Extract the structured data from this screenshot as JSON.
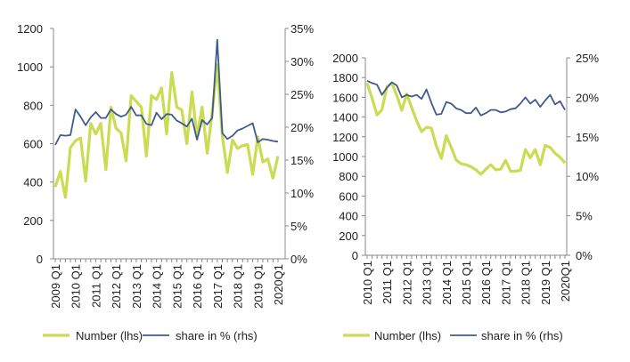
{
  "colors": {
    "number": "#c9dc52",
    "share": "#3f5b8c",
    "axis": "#888888"
  },
  "chart_data": [
    {
      "type": "line",
      "x_tick_labels": [
        "2009 Q1",
        "2010 Q1",
        "2011 Q1",
        "2012 Q1",
        "2013 Q1",
        "2014 Q1",
        "2015 Q1",
        "2016 Q1",
        "2017 Q1",
        "2018 Q1",
        "2019 Q1",
        "2020Q1"
      ],
      "x_range": [
        "2009 Q1",
        "2020 Q1"
      ],
      "y_left": {
        "range": [
          0,
          1200
        ],
        "ticks": [
          "0",
          "200",
          "400",
          "600",
          "800",
          "1000",
          "1200"
        ]
      },
      "y_right": {
        "range": [
          0,
          35
        ],
        "ticks": [
          "0%",
          "5%",
          "10%",
          "15%",
          "20%",
          "25%",
          "30%",
          "35%"
        ]
      },
      "series": [
        {
          "name": "Number (lhs)",
          "axis": "left",
          "values": [
            375,
            455,
            320,
            580,
            615,
            630,
            405,
            705,
            650,
            705,
            465,
            790,
            680,
            655,
            510,
            850,
            820,
            790,
            535,
            850,
            830,
            890,
            650,
            970,
            790,
            775,
            600,
            870,
            640,
            790,
            550,
            760,
            1010,
            640,
            450,
            620,
            575,
            590,
            595,
            440,
            635,
            505,
            520,
            420,
            535
          ]
        },
        {
          "name": "share in % (rhs)",
          "axis": "right",
          "values": [
            17.3,
            18.8,
            18.7,
            18.8,
            22.7,
            21.6,
            20.3,
            21.5,
            22.3,
            21.4,
            21.4,
            22.7,
            22.0,
            21.6,
            21.9,
            23.1,
            21.8,
            21.8,
            20.5,
            20.3,
            22.2,
            21.2,
            22.0,
            21.9,
            21.0,
            20.6,
            20.1,
            21.3,
            18.1,
            21.1,
            20.4,
            21.4,
            33.3,
            19.1,
            18.2,
            18.7,
            19.5,
            19.8,
            20.2,
            20.6,
            17.7,
            18.2,
            18.1,
            17.9,
            17.8
          ]
        }
      ],
      "legend": "bottom"
    },
    {
      "type": "line",
      "x_tick_labels": [
        "2010 Q1",
        "2011 Q1",
        "2012 Q1",
        "2013 Q1",
        "2014 Q1",
        "2015 Q1",
        "2016 Q1",
        "2017 Q1",
        "2018 Q1",
        "2019 Q1",
        "2020Q1"
      ],
      "x_range": [
        "2010 Q1",
        "2020 Q1"
      ],
      "y_left": {
        "range": [
          0,
          2000
        ],
        "ticks": [
          "0",
          "200",
          "400",
          "600",
          "800",
          "1000",
          "1200",
          "1400",
          "1600",
          "1800",
          "2000"
        ]
      },
      "y_right": {
        "range": [
          0,
          25
        ],
        "ticks": [
          "0%",
          "5%",
          "10%",
          "15%",
          "20%",
          "25%"
        ]
      },
      "series": [
        {
          "name": "Number (lhs)",
          "axis": "left",
          "values": [
            1744,
            1587,
            1422,
            1474,
            1708,
            1744,
            1618,
            1468,
            1633,
            1498,
            1363,
            1251,
            1296,
            1287,
            1107,
            981,
            1212,
            1092,
            965,
            926,
            917,
            896,
            866,
            821,
            872,
            917,
            866,
            872,
            962,
            851,
            851,
            860,
            1071,
            987,
            1071,
            917,
            1113,
            1092,
            1032,
            993,
            935
          ]
        },
        {
          "name": "share in % (rhs)",
          "axis": "right",
          "values": [
            22.1,
            21.8,
            21.6,
            20.3,
            21.2,
            21.9,
            21.5,
            20.0,
            20.3,
            20.1,
            20.3,
            19.8,
            21.0,
            19.3,
            17.8,
            17.9,
            19.4,
            19.2,
            18.6,
            18.4,
            18.0,
            18.0,
            18.7,
            17.7,
            18.0,
            18.4,
            18.4,
            18.1,
            18.2,
            18.5,
            18.6,
            19.2,
            20.0,
            19.2,
            19.7,
            18.8,
            19.6,
            20.3,
            19.1,
            19.5,
            18.4
          ]
        }
      ],
      "legend": "bottom"
    }
  ]
}
